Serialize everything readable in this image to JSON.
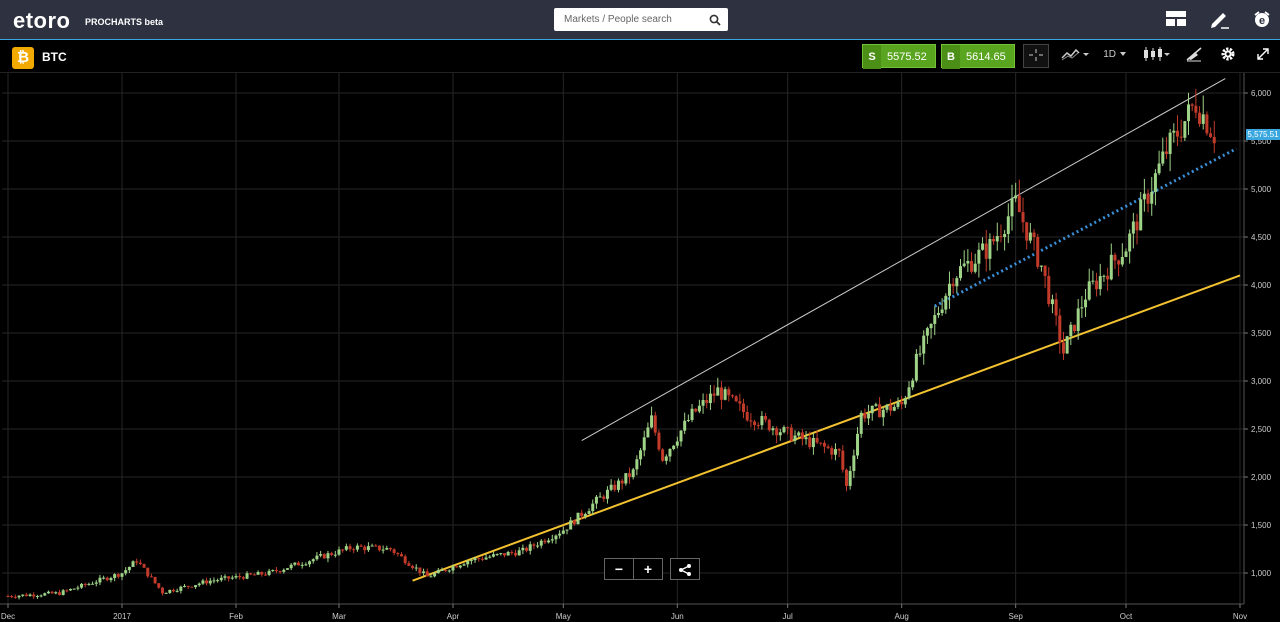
{
  "app": {
    "logo_text": "etoro",
    "logo_sub": "PROCHARTS beta"
  },
  "search": {
    "placeholder": "Markets / People search"
  },
  "instrument": {
    "symbol": "BTC",
    "sell_tag": "S",
    "sell_price": "5575.52",
    "buy_tag": "B",
    "buy_price": "5614.65",
    "timeframe": "1D"
  },
  "icons": [
    "search-icon",
    "layout-icon",
    "pencil-icon",
    "etoro-user-icon",
    "bitcoin-icon",
    "crosshair-icon",
    "indicators-icon",
    "candlestick-icon",
    "drawing-tools-icon",
    "settings-icon",
    "fullscreen-icon",
    "zoom-out-icon",
    "zoom-in-icon",
    "share-icon"
  ],
  "colors": {
    "accent": "#3aa7df",
    "buy_sell_green": "#5aa51f",
    "candle_up": "#9fd488",
    "candle_down": "#c23b2a",
    "trend_yellow": "#f2c230",
    "trend_blue_dotted": "#3a8fd8",
    "channel_white": "#cccccc",
    "brand_btc": "#f2a900"
  },
  "chart_data": {
    "type": "candlestick",
    "x_tick_labels": [
      "Dec",
      "2017",
      "Feb",
      "Mar",
      "Apr",
      "May",
      "Jun",
      "Jul",
      "Aug",
      "Sep",
      "Oct",
      "Nov"
    ],
    "y_tick_labels": [
      "1,000",
      "1,500",
      "2,000",
      "2,500",
      "3,000",
      "3,500",
      "4,000",
      "4,500",
      "5,000",
      "5,500",
      "6,000"
    ],
    "ylim": [
      650,
      6200
    ],
    "current_price_label": "5,575.51",
    "grid": true,
    "close_series_approx": [
      {
        "date": "2016-12-01",
        "close": 760
      },
      {
        "date": "2016-12-15",
        "close": 790
      },
      {
        "date": "2017-01-01",
        "close": 1000
      },
      {
        "date": "2017-01-05",
        "close": 1130
      },
      {
        "date": "2017-01-12",
        "close": 800
      },
      {
        "date": "2017-01-25",
        "close": 920
      },
      {
        "date": "2017-02-10",
        "close": 1000
      },
      {
        "date": "2017-02-25",
        "close": 1180
      },
      {
        "date": "2017-03-05",
        "close": 1270
      },
      {
        "date": "2017-03-15",
        "close": 1250
      },
      {
        "date": "2017-03-25",
        "close": 960
      },
      {
        "date": "2017-04-05",
        "close": 1130
      },
      {
        "date": "2017-04-20",
        "close": 1230
      },
      {
        "date": "2017-05-01",
        "close": 1450
      },
      {
        "date": "2017-05-10",
        "close": 1750
      },
      {
        "date": "2017-05-20",
        "close": 2050
      },
      {
        "date": "2017-05-25",
        "close": 2600
      },
      {
        "date": "2017-05-28",
        "close": 2200
      },
      {
        "date": "2017-06-05",
        "close": 2650
      },
      {
        "date": "2017-06-12",
        "close": 2900
      },
      {
        "date": "2017-06-20",
        "close": 2650
      },
      {
        "date": "2017-07-01",
        "close": 2450
      },
      {
        "date": "2017-07-15",
        "close": 2250
      },
      {
        "date": "2017-07-17",
        "close": 1900
      },
      {
        "date": "2017-07-21",
        "close": 2650
      },
      {
        "date": "2017-08-01",
        "close": 2750
      },
      {
        "date": "2017-08-05",
        "close": 3200
      },
      {
        "date": "2017-08-15",
        "close": 4100
      },
      {
        "date": "2017-08-25",
        "close": 4400
      },
      {
        "date": "2017-09-01",
        "close": 4850
      },
      {
        "date": "2017-09-08",
        "close": 4200
      },
      {
        "date": "2017-09-14",
        "close": 3300
      },
      {
        "date": "2017-09-20",
        "close": 3900
      },
      {
        "date": "2017-10-01",
        "close": 4400
      },
      {
        "date": "2017-10-12",
        "close": 5400
      },
      {
        "date": "2017-10-20",
        "close": 5900
      },
      {
        "date": "2017-10-25",
        "close": 5575
      }
    ],
    "annotations": [
      {
        "kind": "upper-channel-line",
        "color": "white",
        "from": {
          "date": "2017-05-06",
          "value": 2380
        },
        "to": {
          "date": "2017-10-28",
          "value": 6150
        }
      },
      {
        "kind": "support-trendline",
        "color": "yellow",
        "from": {
          "date": "2017-03-21",
          "value": 920
        },
        "to": {
          "date": "2017-11-01",
          "value": 4100
        }
      },
      {
        "kind": "dotted-trendline",
        "color": "blue",
        "from": {
          "date": "2017-08-10",
          "value": 3780
        },
        "to": {
          "date": "2017-10-31",
          "value": 5420
        }
      }
    ]
  },
  "chart_controls": {
    "zoom_out_label": "−",
    "zoom_in_label": "+"
  }
}
